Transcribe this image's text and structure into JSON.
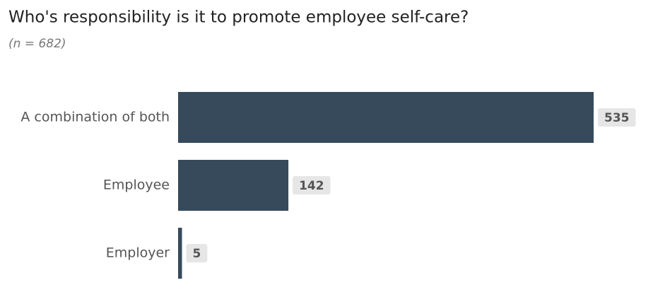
{
  "chart_data": {
    "type": "bar",
    "orientation": "horizontal",
    "title": "Who's responsibility is it to promote employee self-care?",
    "subtitle": "(n = 682)",
    "categories": [
      "A combination of both",
      "Employee",
      "Employer"
    ],
    "values": [
      535,
      142,
      5
    ],
    "color": "#364a5b"
  }
}
